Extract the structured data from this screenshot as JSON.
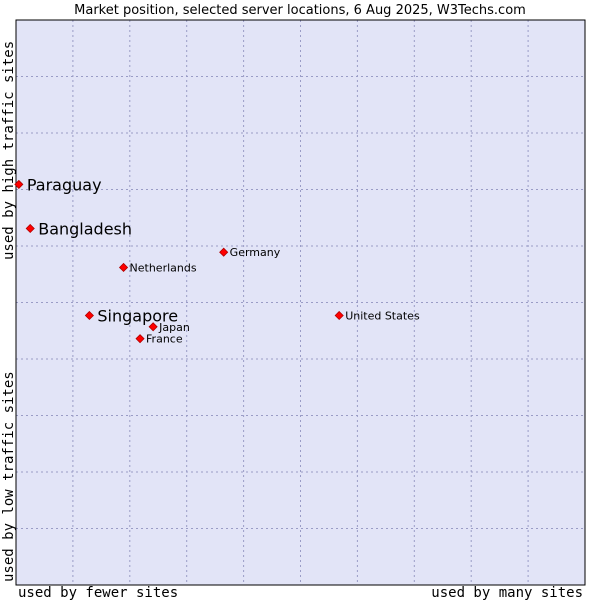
{
  "chart_data": {
    "type": "scatter",
    "title": "Market position, selected server locations, 6 Aug 2025, W3Techs.com",
    "xlabel_left": "used by fewer sites",
    "xlabel_right": "used by many sites",
    "ylabel_top": "used by high traffic sites",
    "ylabel_bottom": "used by low traffic sites",
    "xlim": [
      0,
      100
    ],
    "ylim": [
      0,
      100
    ],
    "grid": true,
    "colors": {
      "plot_bg": "#e2e4f7",
      "grid": "#9a9cc6",
      "point": "#ff0000"
    },
    "points": [
      {
        "name": "Paraguay",
        "x": 0.5,
        "y": 70.9,
        "highlight": true
      },
      {
        "name": "Bangladesh",
        "x": 2.5,
        "y": 63.1,
        "highlight": true
      },
      {
        "name": "Germany",
        "x": 36.5,
        "y": 58.9,
        "highlight": false
      },
      {
        "name": "Netherlands",
        "x": 18.9,
        "y": 56.2,
        "highlight": false
      },
      {
        "name": "Singapore",
        "x": 12.9,
        "y": 47.7,
        "highlight": true
      },
      {
        "name": "United States",
        "x": 56.8,
        "y": 47.7,
        "highlight": false
      },
      {
        "name": "Japan",
        "x": 24.1,
        "y": 45.7,
        "highlight": false
      },
      {
        "name": "France",
        "x": 21.8,
        "y": 43.6,
        "highlight": false
      }
    ]
  }
}
